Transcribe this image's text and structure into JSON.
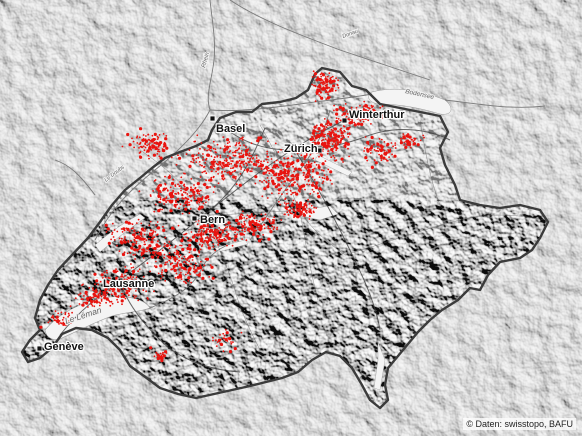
{
  "cities": [
    {
      "id": "basel",
      "label": "Basel"
    },
    {
      "id": "winterthur",
      "label": "Winterthur"
    },
    {
      "id": "zurich",
      "label": "Zürich"
    },
    {
      "id": "bern",
      "label": "Bern"
    },
    {
      "id": "lausanne",
      "label": "Lausanne"
    },
    {
      "id": "geneve",
      "label": "Genève"
    }
  ],
  "water_labels": {
    "lake_geneva": "Le Léman",
    "bodensee": "Bodensee",
    "rhein": "Rhein",
    "doubs": "Le Doubs",
    "danube": "Donau"
  },
  "credit": "© Daten: swisstopo, BAFU",
  "colors": {
    "background": "#e9e9e9",
    "terrain": "#dcdcdc",
    "border": "#444444",
    "rivers": "#7a7a7a",
    "points": "#e8140f"
  }
}
